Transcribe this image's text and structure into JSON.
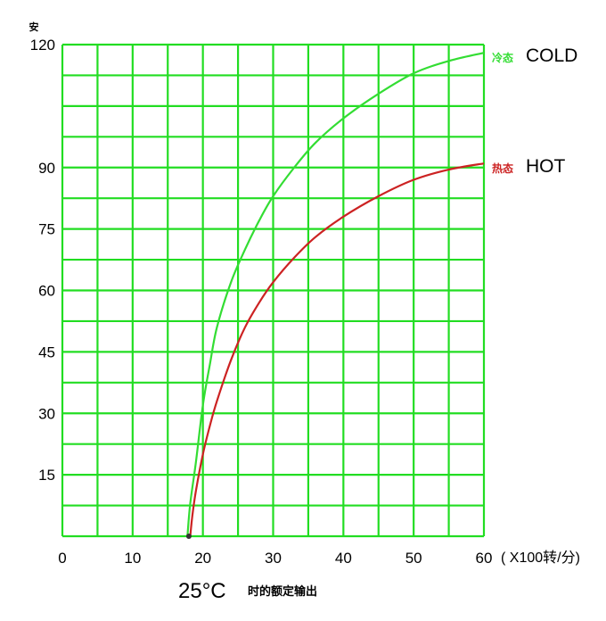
{
  "chart_data": {
    "type": "line",
    "ylabel": "安",
    "x_unit_label": "( X100转/分)",
    "caption_main": "25°C",
    "caption_sub": "时的额定输出",
    "xlim": [
      0,
      60
    ],
    "ylim": [
      0,
      120
    ],
    "x_ticks": [
      0,
      10,
      20,
      30,
      40,
      50,
      60
    ],
    "y_ticks": [
      15,
      30,
      45,
      60,
      75,
      90,
      120
    ],
    "grid": true,
    "grid_color": "#22dd22",
    "series": [
      {
        "name": "COLD",
        "name_cn": "冷态",
        "color": "#33dd33",
        "x": [
          17.8,
          18.2,
          19,
          20,
          21,
          22,
          24,
          26,
          28,
          30,
          33,
          36,
          40,
          45,
          50,
          55,
          60
        ],
        "y": [
          0,
          8,
          18,
          32,
          42,
          51,
          62,
          70,
          77,
          83,
          90,
          96,
          102,
          108,
          113,
          116,
          118
        ]
      },
      {
        "name": "HOT",
        "name_cn": "热态",
        "color": "#cc2222",
        "x": [
          18.2,
          18.5,
          19,
          20,
          21,
          22,
          24,
          26,
          28,
          30,
          33,
          36,
          40,
          45,
          50,
          55,
          60
        ],
        "y": [
          0,
          5,
          11,
          20,
          27,
          33,
          43,
          51,
          57,
          62,
          68,
          73,
          78,
          83,
          87,
          89.5,
          91
        ]
      }
    ]
  }
}
